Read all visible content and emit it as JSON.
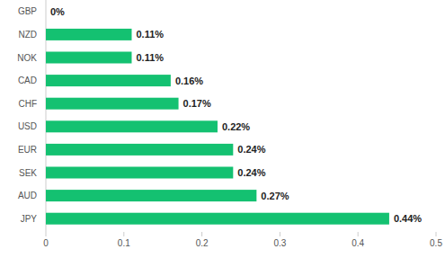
{
  "chart_data": {
    "type": "bar",
    "orientation": "horizontal",
    "categories": [
      "GBP",
      "NZD",
      "NOK",
      "CAD",
      "CHF",
      "USD",
      "EUR",
      "SEK",
      "AUD",
      "JPY"
    ],
    "values": [
      0,
      0.11,
      0.11,
      0.16,
      0.17,
      0.22,
      0.24,
      0.24,
      0.27,
      0.44
    ],
    "value_labels": [
      "0%",
      "0.11%",
      "0.11%",
      "0.16%",
      "0.17%",
      "0.22%",
      "0.24%",
      "0.24%",
      "0.27%",
      "0.44%"
    ],
    "color": "#14c171",
    "xlim": [
      0,
      0.5
    ],
    "xticks": [
      0,
      0.1,
      0.2,
      0.3,
      0.4,
      0.5
    ],
    "grid": false,
    "data_labels": true
  }
}
